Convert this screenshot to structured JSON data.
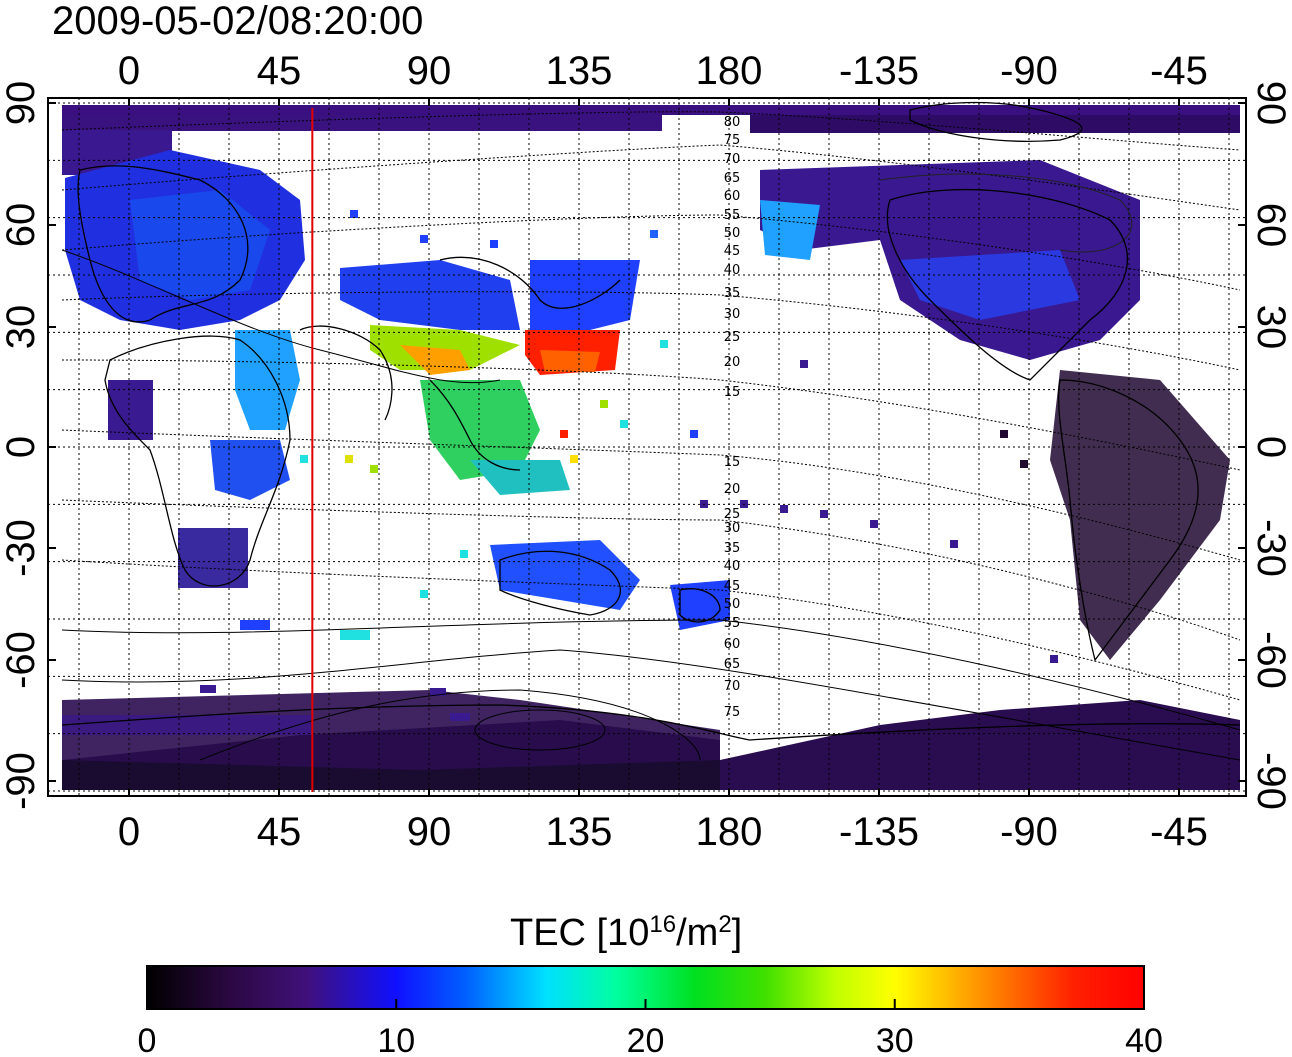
{
  "title": "2009-05-02/08:20:00",
  "map": {
    "x_ticks_bottom": [
      "0",
      "45",
      "90",
      "135",
      "180",
      "-135",
      "-90",
      "-45"
    ],
    "x_ticks_top": [
      "0",
      "45",
      "90",
      "135",
      "180",
      "-135",
      "-90",
      "-45"
    ],
    "y_ticks_left": [
      "90",
      "60",
      "30",
      "0",
      "-30",
      "-60",
      "-90"
    ],
    "y_ticks_right": [
      "90",
      "60",
      "30",
      "0",
      "-30",
      "-60",
      "-90"
    ],
    "terminator_longitude": 55,
    "terminator_color": "#e00000",
    "contour_labels_north": [
      "80",
      "75",
      "70",
      "65",
      "60",
      "55",
      "50",
      "45",
      "40",
      "35",
      "30",
      "25",
      "20",
      "15"
    ],
    "contour_labels_south": [
      "15",
      "20",
      "25",
      "30",
      "35",
      "40",
      "45",
      "50",
      "55",
      "60",
      "65",
      "70",
      "75"
    ]
  },
  "colorbar": {
    "title_prefix": "TEC  [10",
    "title_exp": "16",
    "title_mid": "/m",
    "title_exp2": "2",
    "title_suffix": "]",
    "ticks": [
      "0",
      "10",
      "20",
      "30",
      "40"
    ],
    "range": [
      0,
      40
    ],
    "colors": [
      "#000000",
      "#3a0a5a",
      "#4a1a9a",
      "#0000ff",
      "#00a0ff",
      "#00ffff",
      "#00ff60",
      "#00d000",
      "#c0ff00",
      "#ffff00",
      "#ff8000",
      "#ff2000",
      "#ff0000"
    ]
  }
}
